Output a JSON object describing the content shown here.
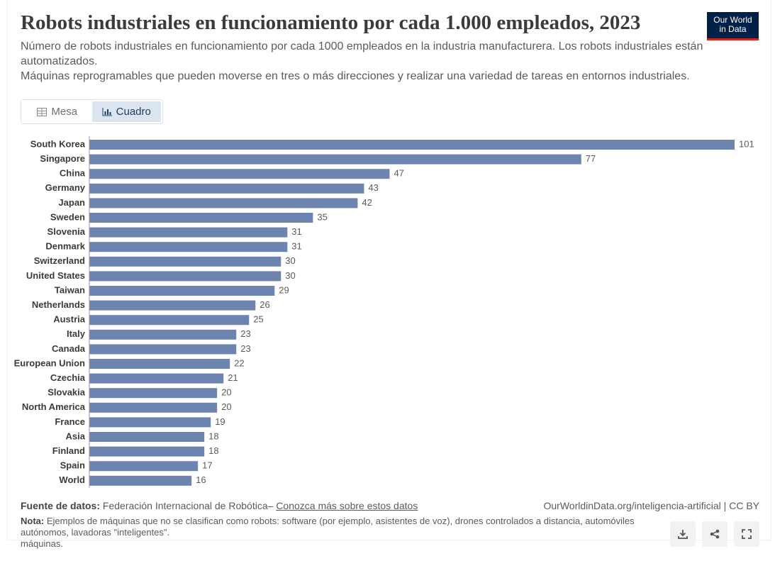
{
  "chart_data": {
    "type": "bar",
    "orientation": "horizontal",
    "title": "Robots industriales en funcionamiento por cada 1.000 empleados, 2023",
    "subtitle": [
      "Número de robots industriales en funcionamiento por cada 1000 empleados en la industria manufacturera. Los robots industriales están automatizados.",
      "Máquinas reprogramables que pueden moverse en tres o más direcciones y realizar una variedad de tareas en entornos industriales."
    ],
    "categories": [
      "South Korea",
      "Singapore",
      "China",
      "Germany",
      "Japan",
      "Sweden",
      "Slovenia",
      "Denmark",
      "Switzerland",
      "United States",
      "Taiwan",
      "Netherlands",
      "Austria",
      "Italy",
      "Canada",
      "European Union",
      "Czechia",
      "Slovakia",
      "North America",
      "France",
      "Asia",
      "Finland",
      "Spain",
      "World"
    ],
    "values": [
      101,
      77,
      47,
      43,
      42,
      35,
      31,
      31,
      30,
      30,
      29,
      26,
      25,
      23,
      23,
      22,
      21,
      20,
      20,
      19,
      18,
      18,
      17,
      16
    ],
    "color": "#6d83b0"
  },
  "logo": [
    "Our World",
    "in Data"
  ],
  "tabs": [
    "Mesa",
    "Cuadro"
  ],
  "footer": {
    "source_label": "Fuente de datos:",
    "source": "Federación Internacional de Robótica–",
    "link": "Conozca más sobre estos datos",
    "url": "OurWorldinData.org/inteligencia-artificial | CC BY",
    "note_label": "Nota:",
    "note": [
      "Ejemplos de máquinas que no se clasifican como robots: software (por ejemplo, asistentes de voz), drones controlados a distancia, automóviles autónomos, lavadoras \"inteligentes\".",
      "máquinas."
    ]
  }
}
